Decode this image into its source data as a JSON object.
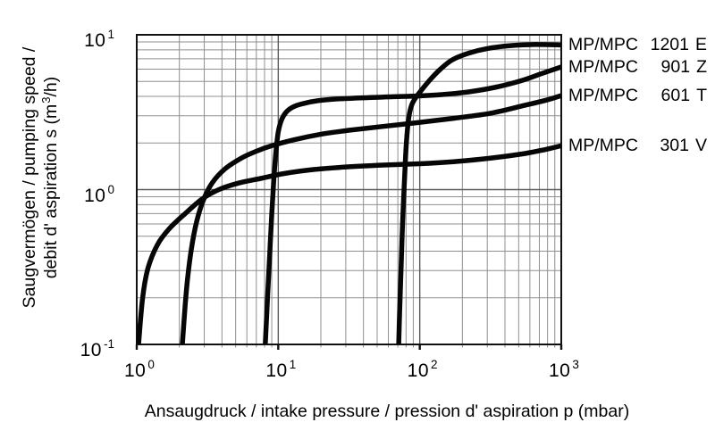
{
  "chart_data": {
    "type": "line",
    "scale": "log-log",
    "grid": "on",
    "curve_color": "#060606",
    "minor_grid_color": "#8f8f8f",
    "major_grid_color": "#5a5a5a",
    "frame_color": "#111111",
    "x_axis": {
      "label": "Ansaugdruck / intake pressure / pression d' aspiration p (mbar)",
      "unit": "mbar",
      "min": 1,
      "max": 1000,
      "ticks": [
        {
          "base": "10",
          "exp": "0",
          "value": 1
        },
        {
          "base": "10",
          "exp": "1",
          "value": 10
        },
        {
          "base": "10",
          "exp": "2",
          "value": 100
        },
        {
          "base": "10",
          "exp": "3",
          "value": 1000
        }
      ]
    },
    "y_axis": {
      "label_line1": "Saugvermögen / pumping speed /",
      "label_line2_pre": "debit d' aspiration s (m",
      "label_line2_sup": "3",
      "label_line2_post": "/h)",
      "unit": "m3/h",
      "min": 0.1,
      "max": 10,
      "ticks": [
        {
          "base": "10",
          "exp": "1",
          "value": 10
        },
        {
          "base": "10",
          "exp": "0",
          "value": 1
        },
        {
          "base": "10",
          "exp": "-1",
          "value": 0.1
        }
      ]
    },
    "series": [
      {
        "name": "MP/MPC 1201 E",
        "label_brand": "MP/MPC",
        "label_num": "1201",
        "label_suffix": "E",
        "points": [
          [
            71,
            0.1
          ],
          [
            72,
            0.16
          ],
          [
            73.5,
            0.28
          ],
          [
            75,
            0.5
          ],
          [
            77,
            0.9
          ],
          [
            79,
            1.5
          ],
          [
            81,
            2.2
          ],
          [
            84,
            3.0
          ],
          [
            88,
            3.55
          ],
          [
            95,
            4.0
          ],
          [
            105,
            4.5
          ],
          [
            120,
            5.2
          ],
          [
            140,
            6.0
          ],
          [
            170,
            6.9
          ],
          [
            220,
            7.6
          ],
          [
            300,
            8.15
          ],
          [
            430,
            8.5
          ],
          [
            650,
            8.65
          ],
          [
            1000,
            8.6
          ]
        ]
      },
      {
        "name": "MP/MPC 901 Z",
        "label_brand": "MP/MPC",
        "label_num": "901",
        "label_suffix": "Z",
        "points": [
          [
            8.1,
            0.1
          ],
          [
            8.4,
            0.2
          ],
          [
            8.7,
            0.38
          ],
          [
            9.0,
            0.7
          ],
          [
            9.3,
            1.15
          ],
          [
            9.6,
            1.7
          ],
          [
            10,
            2.35
          ],
          [
            10.6,
            2.85
          ],
          [
            11.5,
            3.2
          ],
          [
            13,
            3.45
          ],
          [
            15.5,
            3.62
          ],
          [
            19,
            3.75
          ],
          [
            26,
            3.85
          ],
          [
            40,
            3.92
          ],
          [
            65,
            3.98
          ],
          [
            100,
            4.03
          ],
          [
            150,
            4.12
          ],
          [
            230,
            4.3
          ],
          [
            350,
            4.6
          ],
          [
            520,
            5.05
          ],
          [
            720,
            5.6
          ],
          [
            1000,
            6.2
          ]
        ]
      },
      {
        "name": "MP/MPC 601 T",
        "label_brand": "MP/MPC",
        "label_num": "601",
        "label_suffix": "T",
        "points": [
          [
            2.1,
            0.1
          ],
          [
            2.2,
            0.18
          ],
          [
            2.3,
            0.28
          ],
          [
            2.45,
            0.43
          ],
          [
            2.65,
            0.62
          ],
          [
            2.95,
            0.85
          ],
          [
            3.4,
            1.1
          ],
          [
            4.2,
            1.36
          ],
          [
            5.5,
            1.6
          ],
          [
            7,
            1.77
          ],
          [
            9,
            1.92
          ],
          [
            13,
            2.1
          ],
          [
            20,
            2.28
          ],
          [
            32,
            2.42
          ],
          [
            55,
            2.56
          ],
          [
            100,
            2.72
          ],
          [
            180,
            2.9
          ],
          [
            320,
            3.12
          ],
          [
            550,
            3.5
          ],
          [
            780,
            3.78
          ],
          [
            1000,
            4.05
          ]
        ]
      },
      {
        "name": "MP/MPC 301 V",
        "label_brand": "MP/MPC",
        "label_num": "301",
        "label_suffix": "V",
        "points": [
          [
            1.03,
            0.1
          ],
          [
            1.1,
            0.2
          ],
          [
            1.2,
            0.31
          ],
          [
            1.4,
            0.44
          ],
          [
            1.7,
            0.56
          ],
          [
            2.2,
            0.7
          ],
          [
            2.9,
            0.87
          ],
          [
            3.8,
            1.0
          ],
          [
            5.2,
            1.1
          ],
          [
            7.5,
            1.18
          ],
          [
            11,
            1.27
          ],
          [
            18,
            1.35
          ],
          [
            30,
            1.4
          ],
          [
            55,
            1.44
          ],
          [
            100,
            1.47
          ],
          [
            180,
            1.52
          ],
          [
            320,
            1.6
          ],
          [
            550,
            1.71
          ],
          [
            780,
            1.82
          ],
          [
            1000,
            1.92
          ]
        ]
      }
    ]
  }
}
